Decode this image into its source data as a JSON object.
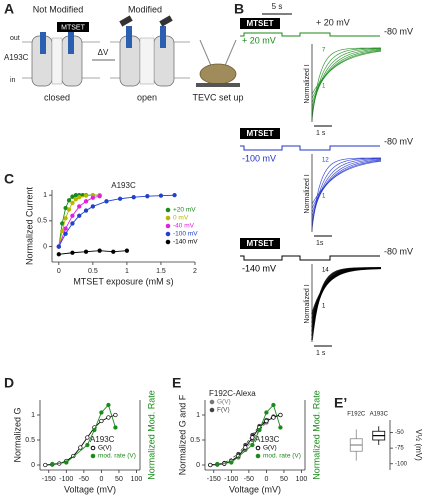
{
  "panel_labels": [
    "A",
    "B",
    "C",
    "D",
    "E",
    "E’"
  ],
  "panel_a": {
    "not_modified": "Not Modified",
    "modified": "Modified",
    "reagent": "MTSET",
    "out": "out",
    "in": "in",
    "mutant": "A193C",
    "delta_v": "ΔV",
    "closed": "closed",
    "open": "open",
    "setup": "TEVC set up"
  },
  "panel_b": {
    "time_scale": "5 s",
    "rows": [
      {
        "reagent": "MTSET",
        "holding": "-80 mV",
        "test": "+ 20 mV",
        "test_top": "+ 20 mV",
        "ylabel": "Normalized I",
        "time_bar": "1 s",
        "first": "1",
        "last": "7",
        "color": "#1a8a1a"
      },
      {
        "reagent": "MTSET",
        "holding": "-80 mV",
        "test": "-100 mV",
        "ylabel": "Normalized I",
        "time_bar": "1s",
        "first": "1",
        "last": "12",
        "color": "#2233cc"
      },
      {
        "reagent": "MTSET",
        "holding": "-80 mV",
        "test": "-140 mV",
        "ylabel": "Normalized I",
        "time_bar": "1 s",
        "first": "1",
        "last": "14",
        "color": "#000000"
      }
    ]
  },
  "chart_data": [
    {
      "type": "scatter",
      "title": "A193C",
      "xlabel": "MTSET exposure (mM s)",
      "ylabel": "Normalized Current",
      "xlim": [
        -0.1,
        2
      ],
      "ylim": [
        -0.3,
        1.1
      ],
      "xticks": [
        0,
        0.5,
        1,
        1.5,
        2
      ],
      "yticks": [
        0,
        0.5,
        1
      ],
      "legend": "right",
      "series": [
        {
          "name": "+20 mV",
          "color": "#1a8a1a",
          "x": [
            0,
            0.05,
            0.1,
            0.15,
            0.2,
            0.25,
            0.3,
            0.35,
            0.4,
            0.5,
            0.6
          ],
          "values": [
            0,
            0.45,
            0.75,
            0.9,
            0.97,
            1,
            1,
            1,
            1,
            1,
            1
          ]
        },
        {
          "name": "0 mV",
          "color": "#b5b800",
          "x": [
            0,
            0.05,
            0.1,
            0.15,
            0.2,
            0.25,
            0.3,
            0.4,
            0.5,
            0.6
          ],
          "values": [
            0,
            0.3,
            0.55,
            0.72,
            0.85,
            0.92,
            0.96,
            0.99,
            1,
            1
          ]
        },
        {
          "name": "-40 mV",
          "color": "#e020e0",
          "x": [
            0,
            0.1,
            0.2,
            0.3,
            0.4,
            0.5,
            0.6
          ],
          "values": [
            0,
            0.35,
            0.6,
            0.78,
            0.88,
            0.95,
            0.98
          ]
        },
        {
          "name": "-100 mV",
          "color": "#2040d0",
          "x": [
            0,
            0.1,
            0.2,
            0.3,
            0.4,
            0.5,
            0.7,
            0.9,
            1.1,
            1.3,
            1.5,
            1.7
          ],
          "values": [
            0,
            0.25,
            0.45,
            0.6,
            0.7,
            0.78,
            0.88,
            0.93,
            0.96,
            0.98,
            0.99,
            1
          ]
        },
        {
          "name": "-140 mV",
          "color": "#000000",
          "x": [
            0,
            0.2,
            0.4,
            0.6,
            0.8,
            1.0
          ],
          "values": [
            -0.15,
            -0.12,
            -0.1,
            -0.08,
            -0.1,
            -0.08
          ]
        }
      ]
    },
    {
      "type": "scatter",
      "xlabel": "Voltage (mV)",
      "ylabel": "Normalized G",
      "y2label": "Normalized Mod. Rate",
      "y2color": "#1a8a1a",
      "xlim": [
        -175,
        110
      ],
      "ylim": [
        -0.1,
        1.3
      ],
      "y2lim": [
        -0.1,
        1.3
      ],
      "xticks": [
        -150,
        -100,
        -50,
        0,
        50,
        100
      ],
      "yticks": [
        0,
        0.5,
        1
      ],
      "groups": [
        {
          "title": "A193C",
          "legend": "lower right",
          "series": [
            {
              "name": "G(V)",
              "color": "#000000",
              "marker": "open",
              "x": [
                -160,
                -140,
                -120,
                -100,
                -80,
                -60,
                -40,
                -20,
                0,
                20,
                40
              ],
              "values": [
                0,
                0.01,
                0.03,
                0.08,
                0.18,
                0.35,
                0.55,
                0.75,
                0.88,
                0.95,
                1
              ]
            },
            {
              "name": "mod. rate (V)",
              "color": "#1a8a1a",
              "axis": "y2",
              "x": [
                -140,
                -100,
                -40,
                -20,
                0,
                20,
                40
              ],
              "values": [
                0.02,
                0.05,
                0.4,
                0.7,
                1.05,
                1.2,
                0.75
              ]
            }
          ]
        }
      ]
    },
    {
      "type": "scatter",
      "xlabel": "Voltage (mV)",
      "ylabel": "Normalized G and F",
      "y2label": "Normalized Mod. Rate",
      "y2color": "#1a8a1a",
      "xlim": [
        -175,
        110
      ],
      "ylim": [
        -0.1,
        1.3
      ],
      "y2lim": [
        -0.1,
        1.3
      ],
      "xticks": [
        -150,
        -100,
        -50,
        0,
        50,
        100
      ],
      "yticks": [
        0,
        0.5,
        1
      ],
      "groups": [
        {
          "title": "F192C-Alexa",
          "legend": "upper left",
          "series": [
            {
              "name": "G(V)",
              "color": "#777777",
              "dash": true,
              "x": [
                -160,
                -120,
                -80,
                -60,
                -40,
                -20,
                0,
                20,
                40
              ],
              "values": [
                0,
                0.02,
                0.15,
                0.3,
                0.5,
                0.7,
                0.85,
                0.95,
                1
              ]
            },
            {
              "name": "F(V)",
              "color": "#444444",
              "dash": true,
              "x": [
                -160,
                -120,
                -80,
                -60,
                -40,
                -20,
                0,
                20,
                40
              ],
              "values": [
                0,
                0.04,
                0.22,
                0.4,
                0.6,
                0.78,
                0.9,
                0.97,
                1
              ]
            }
          ]
        },
        {
          "title": "A193C",
          "legend": "lower right",
          "series": [
            {
              "name": "G(V)",
              "color": "#000000",
              "marker": "open",
              "x": [
                -160,
                -140,
                -120,
                -100,
                -80,
                -60,
                -40,
                -20,
                0,
                20,
                40
              ],
              "values": [
                0,
                0.01,
                0.03,
                0.08,
                0.18,
                0.35,
                0.55,
                0.75,
                0.88,
                0.95,
                1
              ]
            },
            {
              "name": "mod. rate (V)",
              "color": "#1a8a1a",
              "axis": "y2",
              "x": [
                -140,
                -100,
                -40,
                -20,
                0,
                20,
                40
              ],
              "values": [
                0.02,
                0.05,
                0.4,
                0.7,
                1.05,
                1.2,
                0.75
              ]
            }
          ]
        }
      ]
    },
    {
      "type": "box",
      "ylabel": "V½ (mV)",
      "categories": [
        "F192C",
        "A193C"
      ],
      "colors": [
        "#888888",
        "#000000"
      ],
      "ylim": [
        -110,
        -30
      ],
      "yticks": [
        -100,
        -75,
        -50
      ],
      "low": [
        -95,
        -70
      ],
      "q1": [
        -80,
        -62
      ],
      "median": [
        -70,
        -55
      ],
      "q3": [
        -60,
        -48
      ],
      "high": [
        -45,
        -40
      ]
    }
  ]
}
